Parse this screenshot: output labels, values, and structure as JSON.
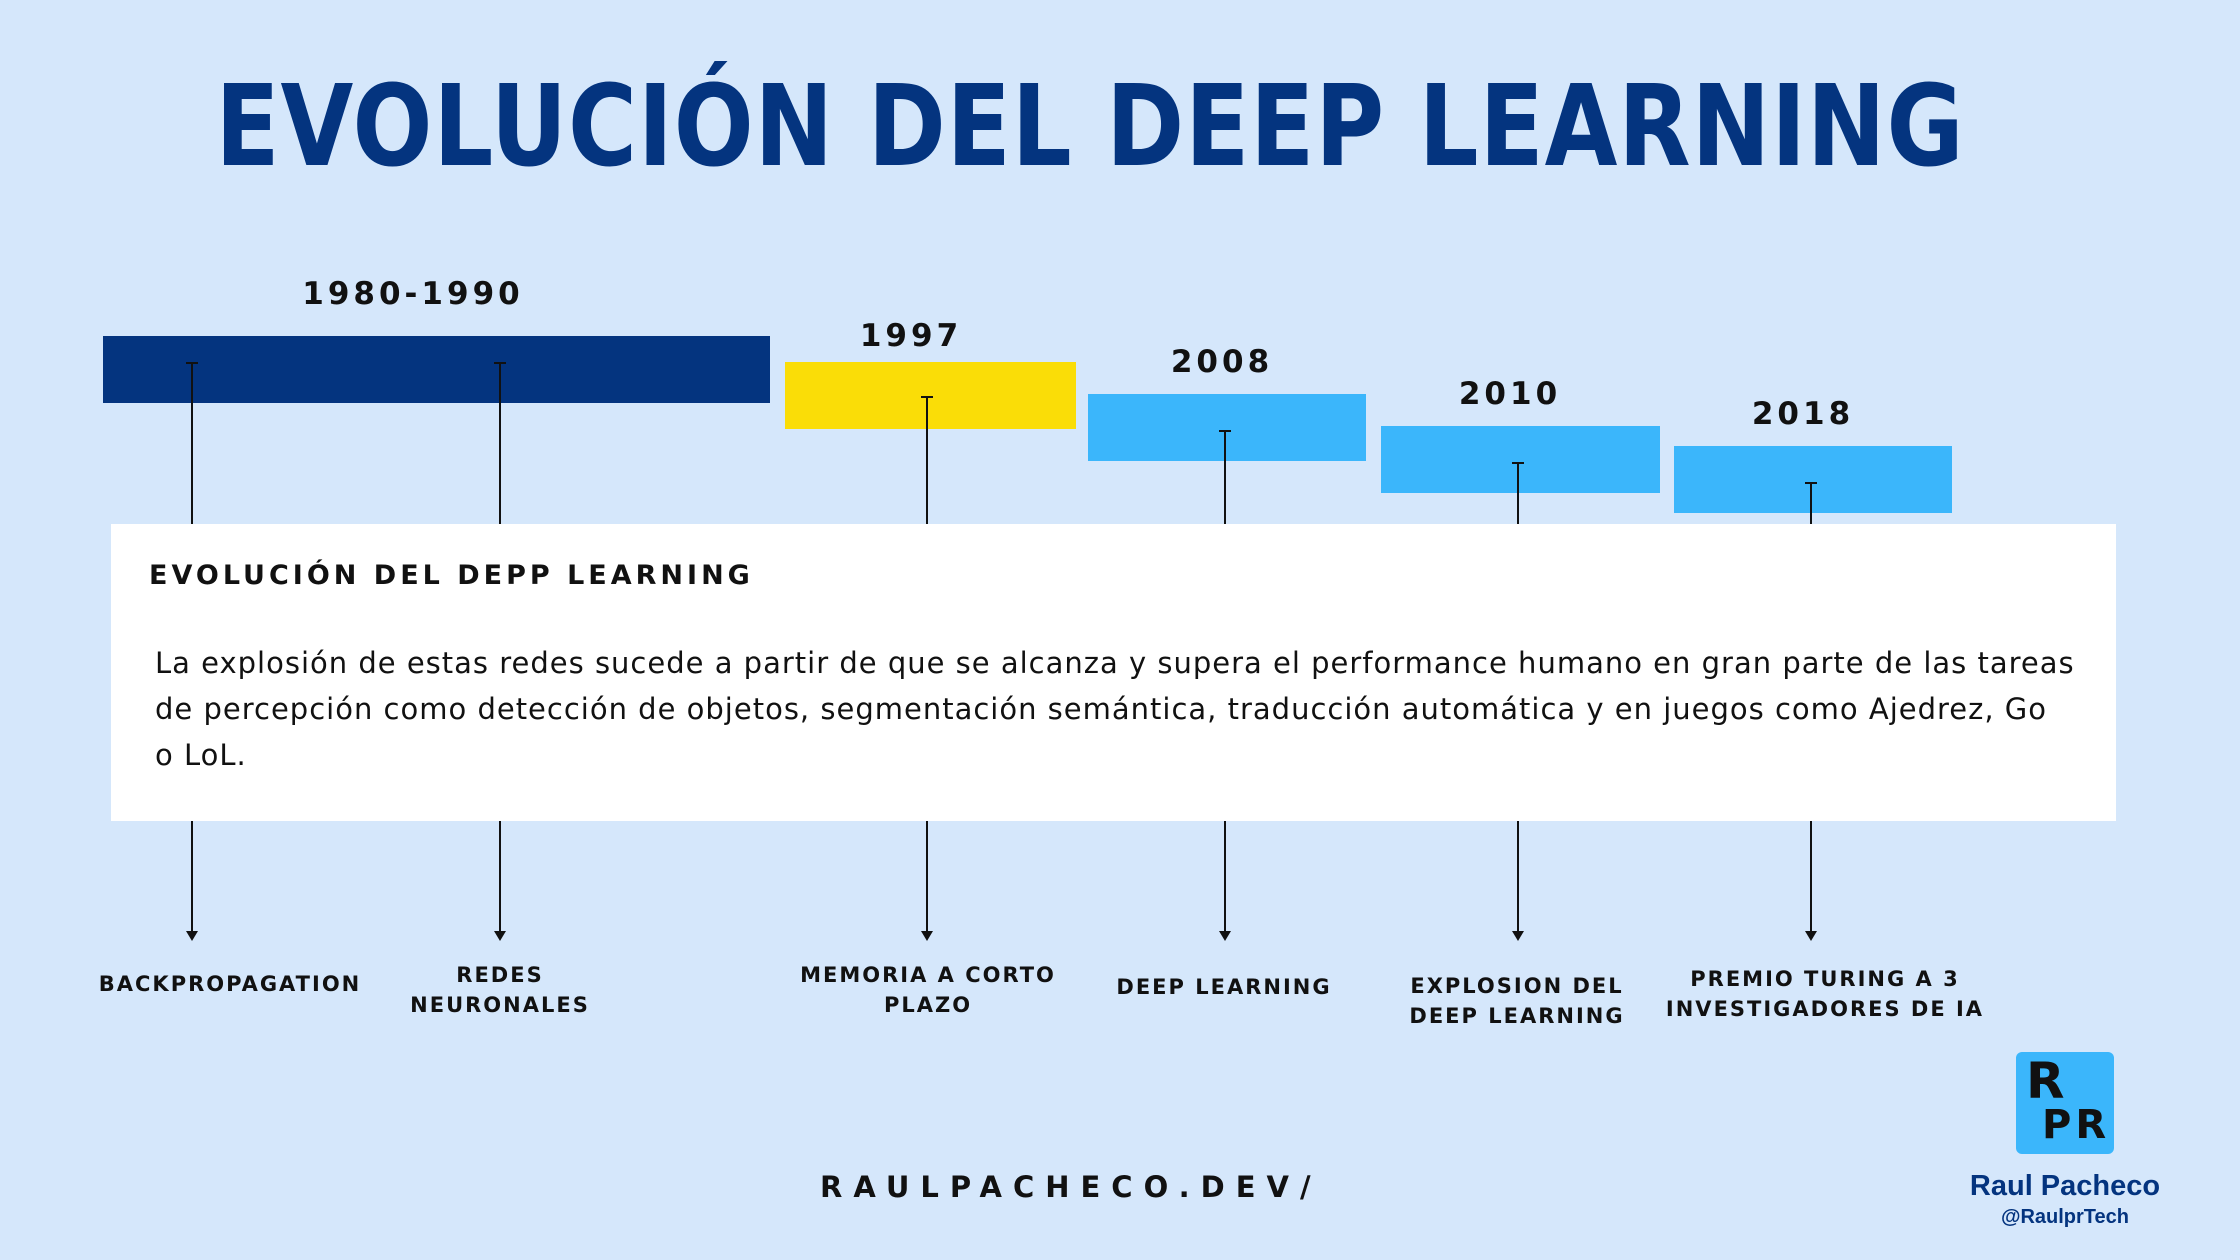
{
  "title": "EVOLUCIÓN DEL DEEP LEARNING",
  "eras": [
    {
      "year": "1980-1990",
      "color": "#04347f"
    },
    {
      "year": "1997",
      "color": "#fadd07"
    },
    {
      "year": "2008",
      "color": "#3bb6fb"
    },
    {
      "year": "2010",
      "color": "#3bb6fb"
    },
    {
      "year": "2018",
      "color": "#3bb6fb"
    }
  ],
  "events": [
    {
      "label": "BACKPROPAGATION"
    },
    {
      "label": "REDES\nNEURONALES"
    },
    {
      "label": "MEMORIA A CORTO\nPLAZO"
    },
    {
      "label": "DEEP LEARNING"
    },
    {
      "label": "EXPLOSION DEL\nDEEP LEARNING"
    },
    {
      "label": "PREMIO TURING A 3\nINVESTIGADORES DE IA"
    }
  ],
  "info_card": {
    "heading": "EVOLUCIÓN DEL DEPP LEARNING",
    "body": "La explosión de estas redes sucede a partir de que se alcanza y supera el performance humano en gran parte de las tareas de percepción como detección de objetos, segmentación semántica, traducción automática y en juegos como Ajedrez, Go o LoL."
  },
  "footer": {
    "site": "RAULPACHECO.DEV/",
    "logo_top": "R",
    "logo_bottom": "PR",
    "author_name": "Raul Pacheco",
    "author_handle": "@RaulprTech"
  }
}
